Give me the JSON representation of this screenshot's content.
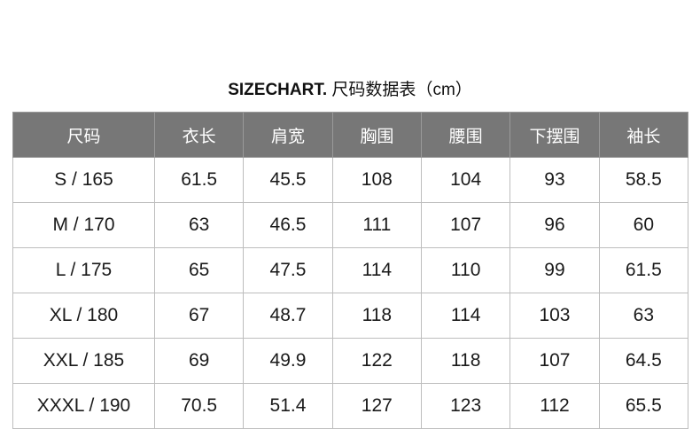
{
  "title": {
    "en": "SIZECHART.",
    "cn": "尺码数据表",
    "unit": "（cm）"
  },
  "table": {
    "headers": [
      "尺码",
      "衣长",
      "肩宽",
      "胸围",
      "腰围",
      "下摆围",
      "袖长"
    ],
    "rows": [
      [
        "S / 165",
        "61.5",
        "45.5",
        "108",
        "104",
        "93",
        "58.5"
      ],
      [
        "M / 170",
        "63",
        "46.5",
        "111",
        "107",
        "96",
        "60"
      ],
      [
        "L / 175",
        "65",
        "47.5",
        "114",
        "110",
        "99",
        "61.5"
      ],
      [
        "XL / 180",
        "67",
        "48.7",
        "118",
        "114",
        "103",
        "63"
      ],
      [
        "XXL / 185",
        "69",
        "49.9",
        "122",
        "118",
        "107",
        "64.5"
      ],
      [
        "XXXL / 190",
        "70.5",
        "51.4",
        "127",
        "123",
        "112",
        "65.5"
      ]
    ]
  },
  "colors": {
    "header_bg": "#777777",
    "border": "#bdbdbd"
  }
}
